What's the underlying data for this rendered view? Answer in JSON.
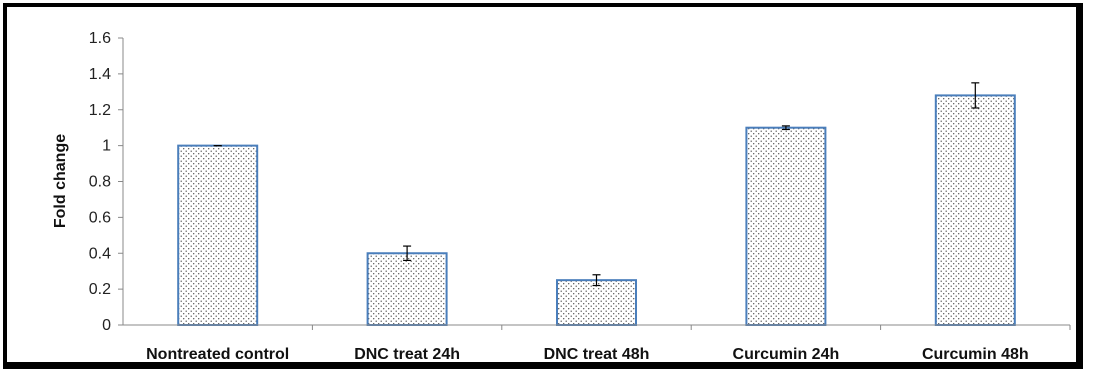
{
  "chart_data": {
    "type": "bar",
    "categories": [
      "Nontreated control",
      "DNC treat 24h",
      "DNC treat 48h",
      "Curcumin 24h",
      "Curcumin 48h"
    ],
    "values": [
      1.0,
      0.4,
      0.25,
      1.1,
      1.28
    ],
    "errors": [
      0.0,
      0.04,
      0.03,
      0.01,
      0.07
    ],
    "ylabel": "Fold change",
    "ylim": [
      0,
      1.6
    ],
    "yticks": [
      "0",
      "0.2",
      "0.4",
      "0.6",
      "0.8",
      "1",
      "1.2",
      "1.4",
      "1.6"
    ],
    "grid": false,
    "legend": "none",
    "bar_fill": "dotted white",
    "bar_edge_color": "#4a7ebb",
    "errorbar_color": "#000000"
  }
}
